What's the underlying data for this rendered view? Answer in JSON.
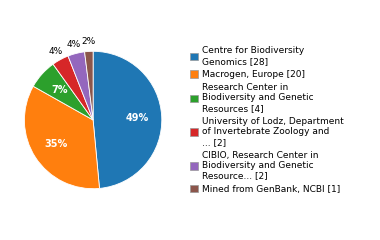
{
  "chart_data": {
    "type": "pie",
    "categories": [
      "Centre for Biodiversity\nGenomics [28]",
      "Macrogen, Europe [20]",
      "Research Center in\nBiodiversity and Genetic\nResources [4]",
      "University of Lodz, Department\nof Invertebrate Zoology and\n... [2]",
      "CIBIO, Research Center in\nBiodiversity and Genetic\nResource... [2]",
      "Mined from GenBank, NCBI [1]"
    ],
    "values": [
      49,
      35,
      7,
      4,
      4,
      2
    ],
    "value_labels": [
      "49%",
      "35%",
      "7%",
      "4%",
      "4%",
      "2%"
    ],
    "data_labels": true,
    "legend": "center left"
  }
}
